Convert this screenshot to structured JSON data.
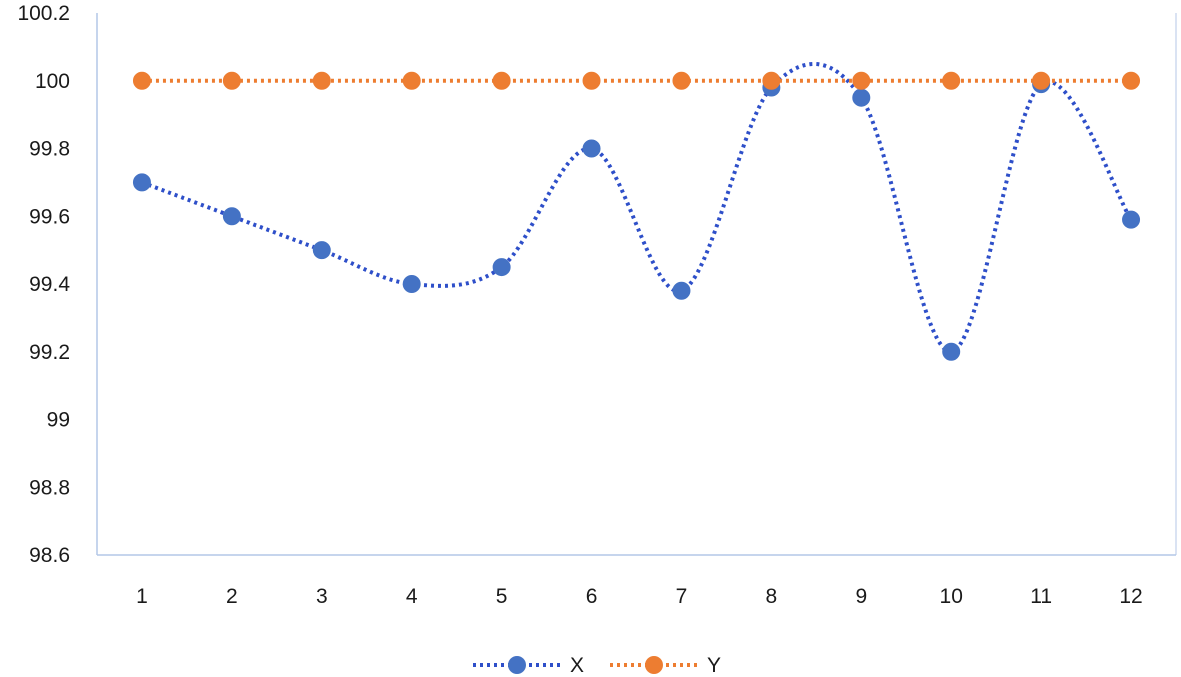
{
  "chart_data": {
    "type": "line",
    "title": "",
    "xlabel": "",
    "ylabel": "",
    "categories": [
      "1",
      "2",
      "3",
      "4",
      "5",
      "6",
      "7",
      "8",
      "9",
      "10",
      "11",
      "12"
    ],
    "ylim": [
      98.6,
      100.2
    ],
    "yticks": [
      "98.6",
      "98.8",
      "99",
      "99.2",
      "99.4",
      "99.6",
      "99.8",
      "100",
      "100.2"
    ],
    "ytick_values": [
      98.6,
      98.8,
      99.0,
      99.2,
      99.4,
      99.6,
      99.8,
      100.0,
      100.2
    ],
    "grid": false,
    "legend_position": "bottom",
    "series": [
      {
        "name": "X",
        "color": "#4472C4",
        "line_color": "#2E4FC9",
        "line_style": "dotted",
        "smooth": true,
        "marker": "circle",
        "values": [
          99.7,
          99.6,
          99.5,
          99.4,
          99.45,
          99.8,
          99.38,
          99.98,
          99.95,
          99.2,
          99.99,
          99.59
        ]
      },
      {
        "name": "Y",
        "color": "#ED7D31",
        "line_color": "#ED7D31",
        "line_style": "dotted",
        "smooth": false,
        "marker": "circle",
        "values": [
          100,
          100,
          100,
          100,
          100,
          100,
          100,
          100,
          100,
          100,
          100,
          100
        ]
      }
    ]
  }
}
